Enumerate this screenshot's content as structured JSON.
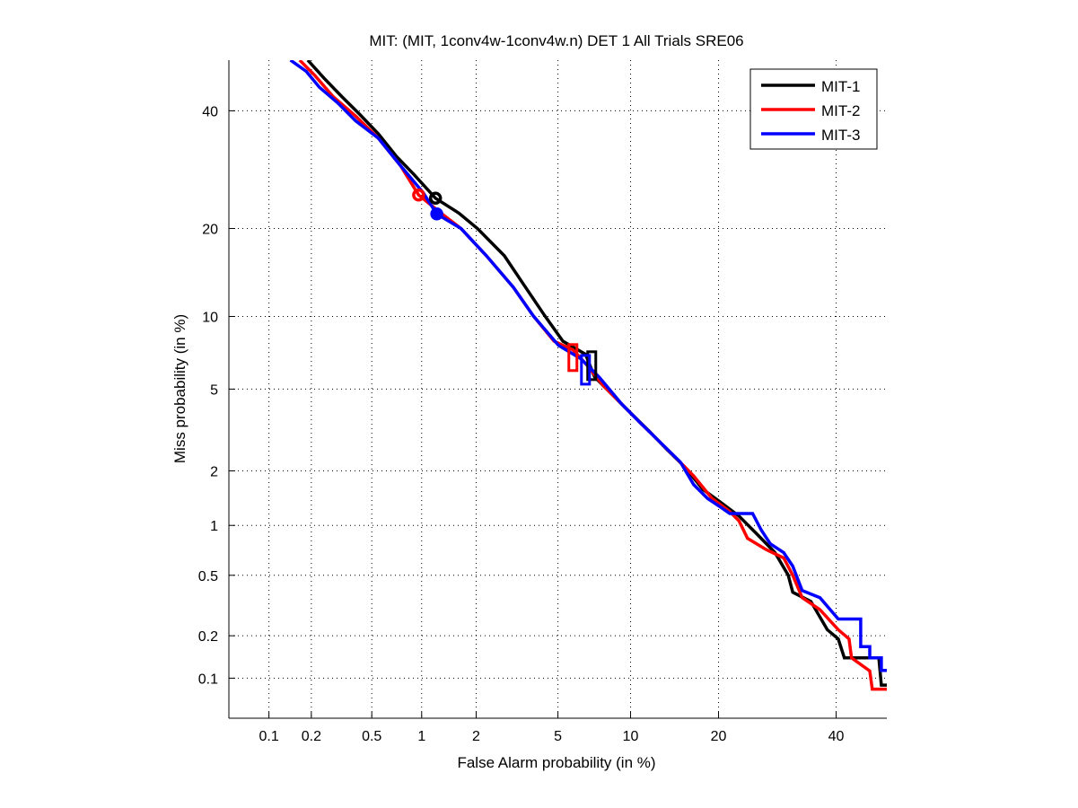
{
  "chart_data": {
    "type": "line",
    "scale": "probit (normal deviate)",
    "title": "MIT: (MIT, 1conv4w-1conv4w.n) DET 1 All Trials SRE06",
    "xlabel": "False Alarm probability (in %)",
    "ylabel": "Miss probability (in %)",
    "xlim": [
      0.05,
      50
    ],
    "ylim": [
      0.05,
      50
    ],
    "grid": true,
    "legend_position": "top-right",
    "x_ticks": [
      0.1,
      0.2,
      0.5,
      1,
      2,
      5,
      10,
      20,
      40
    ],
    "x_tick_labels": [
      "0.1",
      "0.2",
      "0.5",
      "1",
      "2",
      "5",
      "10",
      "20",
      "40"
    ],
    "y_ticks": [
      0.1,
      0.2,
      0.5,
      1,
      2,
      5,
      10,
      20,
      40
    ],
    "y_tick_labels": [
      "0.1",
      "0.2",
      "0.5",
      "1",
      "2",
      "5",
      "10",
      "20",
      "40"
    ],
    "series": [
      {
        "name": "MIT-1",
        "color": "#000000",
        "points": [
          [
            0.189,
            50
          ],
          [
            0.244,
            46.4
          ],
          [
            0.32,
            42.8
          ],
          [
            0.42,
            39.3
          ],
          [
            0.55,
            35.6
          ],
          [
            0.71,
            31.5
          ],
          [
            0.9,
            28.4
          ],
          [
            1.2,
            24.5
          ],
          [
            1.62,
            22.2
          ],
          [
            2.03,
            20.0
          ],
          [
            2.79,
            16.4
          ],
          [
            3.42,
            13.3
          ],
          [
            4.36,
            10.05
          ],
          [
            5.26,
            8.0
          ],
          [
            6.59,
            7.07
          ],
          [
            7.19,
            5.66
          ],
          [
            8.5,
            4.71
          ],
          [
            9.99,
            3.89
          ],
          [
            11.7,
            3.19
          ],
          [
            13.5,
            2.6
          ],
          [
            15.6,
            2.1
          ],
          [
            17.9,
            1.59
          ],
          [
            20.3,
            1.35
          ],
          [
            23.0,
            1.13
          ],
          [
            25.8,
            0.89
          ],
          [
            28.8,
            0.69
          ],
          [
            31.1,
            0.5
          ],
          [
            31.9,
            0.39
          ],
          [
            35.2,
            0.34
          ],
          [
            38.3,
            0.22
          ],
          [
            40.4,
            0.19
          ],
          [
            41.6,
            0.14
          ],
          [
            48.4,
            0.14
          ],
          [
            48.9,
            0.089
          ],
          [
            50.7,
            0.089
          ]
        ],
        "min_dcf_point": [
          1.2,
          24.5
        ],
        "act_dcf_box": {
          "fa": 7.0,
          "miss_low": 5.51,
          "miss_high": 7.24
        }
      },
      {
        "name": "MIT-2",
        "color": "#ff0000",
        "points": [
          [
            0.166,
            50
          ],
          [
            0.212,
            46.9
          ],
          [
            0.28,
            42.8
          ],
          [
            0.394,
            39.0
          ],
          [
            0.55,
            34.8
          ],
          [
            0.75,
            29.9
          ],
          [
            0.96,
            25.0
          ],
          [
            1.29,
            22.2
          ],
          [
            1.66,
            20.0
          ],
          [
            2.26,
            16.4
          ],
          [
            3.09,
            12.8
          ],
          [
            3.85,
            10.05
          ],
          [
            4.8,
            8.0
          ],
          [
            5.82,
            7.37
          ],
          [
            6.59,
            6.47
          ],
          [
            7.83,
            5.17
          ],
          [
            9.23,
            4.28
          ],
          [
            10.8,
            3.52
          ],
          [
            12.6,
            2.88
          ],
          [
            14.6,
            2.33
          ],
          [
            16.7,
            1.88
          ],
          [
            19.1,
            1.42
          ],
          [
            21.6,
            1.2
          ],
          [
            23.0,
            1.06
          ],
          [
            24.3,
            0.84
          ],
          [
            27.3,
            0.72
          ],
          [
            30.3,
            0.64
          ],
          [
            31.9,
            0.5
          ],
          [
            33.6,
            0.36
          ],
          [
            36.9,
            0.3
          ],
          [
            40.4,
            0.22
          ],
          [
            42.5,
            0.19
          ],
          [
            43.0,
            0.14
          ],
          [
            46.6,
            0.113
          ],
          [
            47.1,
            0.083
          ],
          [
            50.7,
            0.083
          ]
        ],
        "min_dcf_point": [
          0.96,
          25.0
        ],
        "act_dcf_box": {
          "fa": 5.82,
          "miss_low": 6.03,
          "miss_high": 7.75
        }
      },
      {
        "name": "MIT-3",
        "color": "#0000ff",
        "points": [
          [
            0.143,
            50
          ],
          [
            0.184,
            47.8
          ],
          [
            0.227,
            44.6
          ],
          [
            0.3,
            41.6
          ],
          [
            0.394,
            38.1
          ],
          [
            0.55,
            34.8
          ],
          [
            0.75,
            29.9
          ],
          [
            1.02,
            25.4
          ],
          [
            1.22,
            22.1
          ],
          [
            1.66,
            20.0
          ],
          [
            2.26,
            16.4
          ],
          [
            3.09,
            12.8
          ],
          [
            3.85,
            10.05
          ],
          [
            5.03,
            7.69
          ],
          [
            6.3,
            6.77
          ],
          [
            7.5,
            5.66
          ],
          [
            9.23,
            4.28
          ],
          [
            10.8,
            3.52
          ],
          [
            12.6,
            2.88
          ],
          [
            15.1,
            2.22
          ],
          [
            16.7,
            1.69
          ],
          [
            18.5,
            1.42
          ],
          [
            20.3,
            1.27
          ],
          [
            21.6,
            1.17
          ],
          [
            25.1,
            1.17
          ],
          [
            26.5,
            0.94
          ],
          [
            28.0,
            0.78
          ],
          [
            30.3,
            0.69
          ],
          [
            31.9,
            0.57
          ],
          [
            33.6,
            0.4
          ],
          [
            36.9,
            0.36
          ],
          [
            40.4,
            0.26
          ],
          [
            44.8,
            0.26
          ],
          [
            44.8,
            0.23
          ],
          [
            44.8,
            0.168
          ],
          [
            46.6,
            0.168
          ],
          [
            46.6,
            0.14
          ],
          [
            48.9,
            0.14
          ],
          [
            48.9,
            0.114
          ],
          [
            50.7,
            0.114
          ]
        ],
        "min_dcf_point": [
          1.22,
          22.1
        ],
        "act_dcf_box": {
          "fa": 6.59,
          "miss_low": 5.26,
          "miss_high": 6.99
        }
      }
    ]
  }
}
